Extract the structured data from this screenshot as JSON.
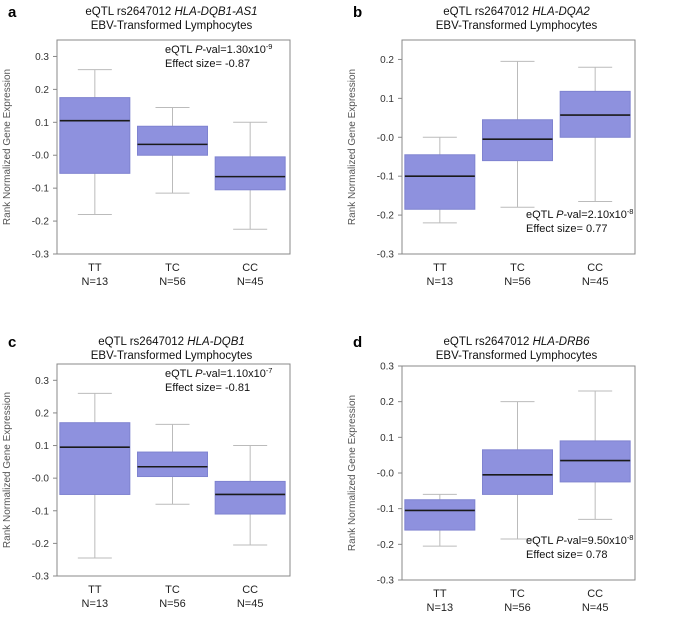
{
  "style": {
    "box_fill": "#8e91de",
    "box_stroke": "#7f83d0",
    "median": "#1a1a1a",
    "whisker": "#bbbbbb",
    "frame": "#888888",
    "tick_text": "#333333",
    "ylabel_color": "#555555"
  },
  "chart_data": [
    {
      "type": "box",
      "panel": "a",
      "title_prefix": "eQTL rs2647012 ",
      "title_gene": "HLA-DQB1-AS1",
      "subtitle": "EBV-Transformed Lymphocytes",
      "ylabel": "Rank Normalized Gene Expression",
      "ylim": [
        -0.3,
        0.35
      ],
      "yticks": [
        "-0.3",
        "-0.2",
        "-0.1",
        "-0.0",
        "0.1",
        "0.2",
        "0.3"
      ],
      "stats": {
        "pval_label": "eQTL ",
        "pval_italic": "P",
        "pval_text": "-val=1.30x10",
        "pval_exp": "-9",
        "effect": "Effect size= -0.87",
        "position": "top"
      },
      "groups": [
        {
          "label": "TT",
          "n": "N=13",
          "min": -0.18,
          "q1": -0.055,
          "median": 0.105,
          "q3": 0.175,
          "max": 0.26
        },
        {
          "label": "TC",
          "n": "N=56",
          "min": -0.115,
          "q1": 0.0,
          "median": 0.033,
          "q3": 0.088,
          "max": 0.145
        },
        {
          "label": "CC",
          "n": "N=45",
          "min": -0.225,
          "q1": -0.105,
          "median": -0.065,
          "q3": -0.005,
          "max": 0.1
        }
      ]
    },
    {
      "type": "box",
      "panel": "b",
      "title_prefix": "eQTL rs2647012 ",
      "title_gene": "HLA-DQA2",
      "subtitle": "EBV-Transformed Lymphocytes",
      "ylabel": "Rank Normalized Gene Expression",
      "ylim": [
        -0.3,
        0.25
      ],
      "yticks": [
        "-0.3",
        "-0.2",
        "-0.1",
        "-0.0",
        "0.1",
        "0.2"
      ],
      "stats": {
        "pval_label": "eQTL ",
        "pval_italic": "P",
        "pval_text": "-val=2.10x10",
        "pval_exp": "-8",
        "effect": "Effect size= 0.77",
        "position": "bottom"
      },
      "groups": [
        {
          "label": "TT",
          "n": "N=13",
          "min": -0.22,
          "q1": -0.185,
          "median": -0.1,
          "q3": -0.045,
          "max": 0.0
        },
        {
          "label": "TC",
          "n": "N=56",
          "min": -0.18,
          "q1": -0.06,
          "median": -0.005,
          "q3": 0.045,
          "max": 0.195
        },
        {
          "label": "CC",
          "n": "N=45",
          "min": -0.165,
          "q1": 0.0,
          "median": 0.057,
          "q3": 0.118,
          "max": 0.18
        }
      ]
    },
    {
      "type": "box",
      "panel": "c",
      "title_prefix": "eQTL rs2647012 ",
      "title_gene": "HLA-DQB1",
      "subtitle": "EBV-Transformed Lymphocytes",
      "ylabel": "Rank Normalized Gene Expression",
      "ylim": [
        -0.3,
        0.35
      ],
      "yticks": [
        "-0.3",
        "-0.2",
        "-0.1",
        "-0.0",
        "0.1",
        "0.2",
        "0.3"
      ],
      "stats": {
        "pval_label": "eQTL ",
        "pval_italic": "P",
        "pval_text": "-val=1.10x10",
        "pval_exp": "-7",
        "effect": "Effect size= -0.81",
        "position": "top"
      },
      "groups": [
        {
          "label": "TT",
          "n": "N=13",
          "min": -0.245,
          "q1": -0.05,
          "median": 0.095,
          "q3": 0.17,
          "max": 0.26
        },
        {
          "label": "TC",
          "n": "N=56",
          "min": -0.08,
          "q1": 0.005,
          "median": 0.035,
          "q3": 0.08,
          "max": 0.165
        },
        {
          "label": "CC",
          "n": "N=45",
          "min": -0.205,
          "q1": -0.11,
          "median": -0.05,
          "q3": -0.01,
          "max": 0.1
        }
      ]
    },
    {
      "type": "box",
      "panel": "d",
      "title_prefix": "eQTL rs2647012 ",
      "title_gene": "HLA-DRB6",
      "subtitle": "EBV-Transformed Lymphocytes",
      "ylabel": "Rank Normalized Gene Expression",
      "ylim": [
        -0.3,
        0.3
      ],
      "yticks": [
        "-0.3",
        "-0.2",
        "-0.1",
        "-0.0",
        "0.1",
        "0.2",
        "0.3"
      ],
      "stats": {
        "pval_label": "eQTL ",
        "pval_italic": "P",
        "pval_text": "-val=9.50x10",
        "pval_exp": "-8",
        "effect": "Effect size= 0.78",
        "position": "bottom"
      },
      "groups": [
        {
          "label": "TT",
          "n": "N=13",
          "min": -0.205,
          "q1": -0.16,
          "median": -0.105,
          "q3": -0.075,
          "max": -0.06
        },
        {
          "label": "TC",
          "n": "N=56",
          "min": -0.185,
          "q1": -0.06,
          "median": -0.005,
          "q3": 0.065,
          "max": 0.2
        },
        {
          "label": "CC",
          "n": "N=45",
          "min": -0.13,
          "q1": -0.025,
          "median": 0.035,
          "q3": 0.09,
          "max": 0.23
        }
      ]
    }
  ]
}
